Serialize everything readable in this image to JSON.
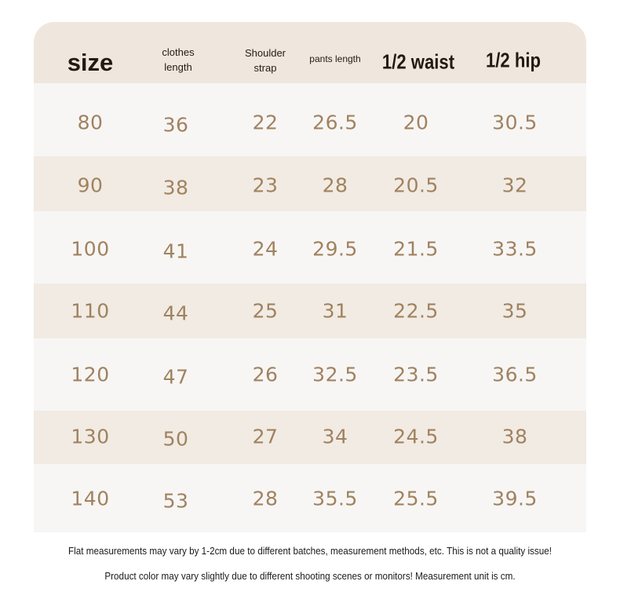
{
  "headers": {
    "size": "size",
    "clothes_length": [
      "clothes",
      "length"
    ],
    "shoulder_strap": [
      "Shoulder",
      "strap"
    ],
    "pants_length": "pants length",
    "half_waist": "1/2 waist",
    "half_hip": "1/2 hip"
  },
  "rows": [
    {
      "size": "80",
      "clothes_length": "36",
      "shoulder_strap": "22",
      "pants_length": "26.5",
      "half_waist": "20",
      "half_hip": "30.5"
    },
    {
      "size": "90",
      "clothes_length": "38",
      "shoulder_strap": "23",
      "pants_length": "28",
      "half_waist": "20.5",
      "half_hip": "32"
    },
    {
      "size": "100",
      "clothes_length": "41",
      "shoulder_strap": "24",
      "pants_length": "29.5",
      "half_waist": "21.5",
      "half_hip": "33.5"
    },
    {
      "size": "110",
      "clothes_length": "44",
      "shoulder_strap": "25",
      "pants_length": "31",
      "half_waist": "22.5",
      "half_hip": "35"
    },
    {
      "size": "120",
      "clothes_length": "47",
      "shoulder_strap": "26",
      "pants_length": "32.5",
      "half_waist": "23.5",
      "half_hip": "36.5"
    },
    {
      "size": "130",
      "clothes_length": "50",
      "shoulder_strap": "27",
      "pants_length": "34",
      "half_waist": "24.5",
      "half_hip": "38"
    },
    {
      "size": "140",
      "clothes_length": "53",
      "shoulder_strap": "28",
      "pants_length": "35.5",
      "half_waist": "25.5",
      "half_hip": "39.5"
    }
  ],
  "notes": [
    "Flat measurements may vary by 1-2cm due to different batches, measurement methods, etc. This is not a quality issue!",
    "Product color may vary slightly due to different shooting scenes or monitors! Measurement unit is cm."
  ],
  "colors": {
    "header_bg": "#efe7dd",
    "row_light": "#f7f6f5",
    "row_dark": "#f1ebe3",
    "value_text": "#a0825f",
    "header_text": "#231a14"
  }
}
